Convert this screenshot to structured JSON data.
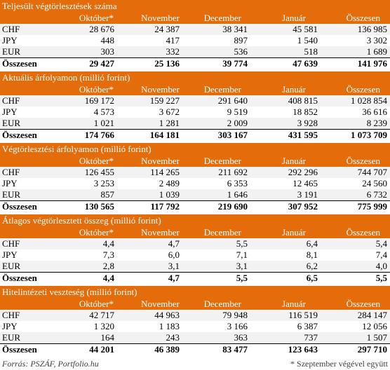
{
  "columns": [
    "Október*",
    "November",
    "December",
    "Január",
    "Összesen"
  ],
  "sections": [
    {
      "title": "Teljesült végtörlesztések száma",
      "rows": [
        {
          "label": "CHF",
          "values": [
            "28 676",
            "24 387",
            "38 341",
            "45 581",
            "136 985"
          ]
        },
        {
          "label": "JPY",
          "values": [
            "448",
            "417",
            "897",
            "1 540",
            "3 302"
          ]
        },
        {
          "label": "EUR",
          "values": [
            "303",
            "332",
            "536",
            "518",
            "1 689"
          ]
        }
      ],
      "total": {
        "label": "Összesen",
        "values": [
          "29 427",
          "25 136",
          "39 774",
          "47 639",
          "141 976"
        ]
      }
    },
    {
      "title": "Aktuális árfolyamon (millió forint)",
      "rows": [
        {
          "label": "CHF",
          "values": [
            "169 172",
            "159 227",
            "291 640",
            "408 815",
            "1 028 854"
          ]
        },
        {
          "label": "JPY",
          "values": [
            "4 573",
            "3 672",
            "9 519",
            "18 852",
            "36 616"
          ]
        },
        {
          "label": "EUR",
          "values": [
            "1 021",
            "1 281",
            "2 009",
            "3 928",
            "8 239"
          ]
        }
      ],
      "total": {
        "label": "Összesen",
        "values": [
          "174 766",
          "164 181",
          "303 167",
          "431 595",
          "1 073 709"
        ]
      }
    },
    {
      "title": "Végtörlesztési árfolyamon (millió forint)",
      "rows": [
        {
          "label": "CHF",
          "values": [
            "126 455",
            "114 265",
            "211 692",
            "292 296",
            "744 707"
          ]
        },
        {
          "label": "JPY",
          "values": [
            "3 253",
            "2 489",
            "6 353",
            "12 465",
            "24 560"
          ]
        },
        {
          "label": "EUR",
          "values": [
            "857",
            "1 039",
            "1 646",
            "3 191",
            "6 732"
          ]
        }
      ],
      "total": {
        "label": "Összesen",
        "values": [
          "130 565",
          "117 792",
          "219 690",
          "307 952",
          "775 999"
        ]
      }
    },
    {
      "title": "Átlagos végtörlesztett összeg (millió forint)",
      "rows": [
        {
          "label": "CHF",
          "values": [
            "4,4",
            "4,7",
            "5,5",
            "6,4",
            "5,4"
          ]
        },
        {
          "label": "JPY",
          "values": [
            "7,3",
            "6,0",
            "7,1",
            "8,1",
            "7,4"
          ]
        },
        {
          "label": "EUR",
          "values": [
            "2,8",
            "3,1",
            "3,1",
            "6,2",
            "4,0"
          ]
        }
      ],
      "total": {
        "label": "Összesen",
        "values": [
          "4,4",
          "4,7",
          "5,5",
          "6,5",
          "5,5"
        ]
      }
    },
    {
      "title": "Hitelintézeti veszteség (millió forint)",
      "rows": [
        {
          "label": "CHF",
          "values": [
            "42 717",
            "44 963",
            "79 948",
            "116 519",
            "284 147"
          ]
        },
        {
          "label": "JPY",
          "values": [
            "1 320",
            "1 183",
            "3 166",
            "6 387",
            "12 056"
          ]
        },
        {
          "label": "EUR",
          "values": [
            "164",
            "243",
            "363",
            "737",
            "1 507"
          ]
        }
      ],
      "total": {
        "label": "Összesen",
        "values": [
          "44 201",
          "46 389",
          "83 477",
          "123 643",
          "297 710"
        ]
      }
    }
  ],
  "footer": {
    "source": "Forrás: PSZÁF, Portfolio.hu",
    "note": "* Szeptember végével együtt"
  },
  "colors": {
    "header": "#e46c0a",
    "row_shade": "#f2f2f2",
    "text": "#000000"
  }
}
